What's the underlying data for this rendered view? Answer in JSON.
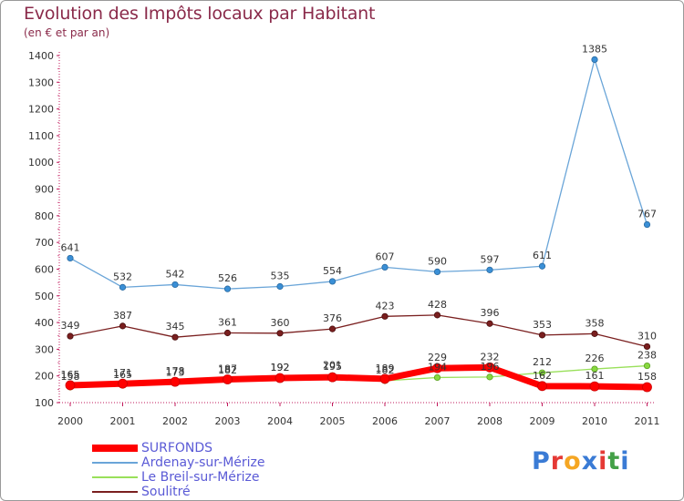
{
  "title": "Evolution des Impôts locaux par Habitant",
  "subtitle": "(en € et par an)",
  "logo_text": "Proxiti",
  "colors": {
    "title": "#8a2a4a",
    "legend_text": "#5a5ad6",
    "axis": "#c2185b",
    "grid": "#d8d8d8",
    "logo": [
      "#3a7bd5",
      "#e53935",
      "#f5a623",
      "#3a7bd5",
      "#e53935",
      "#43a047",
      "#3a7bd5"
    ]
  },
  "chart_data": {
    "type": "line",
    "title": "Evolution des Impôts locaux par Habitant",
    "subtitle": "(en € et par an)",
    "x": [
      "2000",
      "2001",
      "2002",
      "2003",
      "2004",
      "2005",
      "2006",
      "2007",
      "2008",
      "2009",
      "2010",
      "2011"
    ],
    "yticks": [
      100,
      200,
      300,
      400,
      500,
      600,
      700,
      800,
      900,
      1000,
      1100,
      1200,
      1300,
      1400
    ],
    "ylim": [
      100,
      1400
    ],
    "grid": false,
    "legend_position": "bottom-left",
    "series": [
      {
        "name": "SURFONDS",
        "color": "#ff0000",
        "values": [
          165,
          171,
          178,
          187,
          192,
          195,
          189,
          229,
          232,
          162,
          161,
          158
        ]
      },
      {
        "name": "Ardenay-sur-Mérize",
        "color": "#6aa5d8",
        "values": [
          641,
          532,
          542,
          526,
          535,
          554,
          607,
          590,
          597,
          611,
          1385,
          767
        ]
      },
      {
        "name": "Le Breil-sur-Mérize",
        "color": "#99e05a",
        "values": [
          158,
          165,
          173,
          182,
          192,
          201,
          182,
          194,
          196,
          212,
          226,
          238
        ]
      },
      {
        "name": "Soulitré",
        "color": "#7a1f1f",
        "values": [
          349,
          387,
          345,
          361,
          360,
          376,
          423,
          428,
          396,
          353,
          358,
          310
        ]
      }
    ]
  }
}
